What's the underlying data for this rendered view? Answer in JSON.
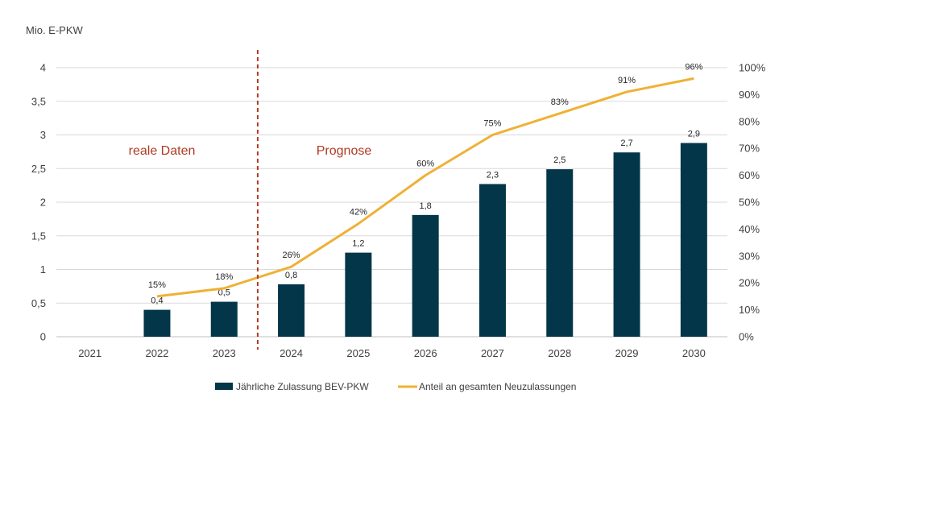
{
  "chart_data": {
    "type": "bar",
    "ylabel": "Mio. E-PKW",
    "categories": [
      "2021",
      "2022",
      "2023",
      "2024",
      "2025",
      "2026",
      "2027",
      "2028",
      "2029",
      "2030"
    ],
    "ylim": [
      0,
      4
    ],
    "yticks": [
      "0",
      "0,5",
      "1",
      "1,5",
      "2",
      "2,5",
      "3",
      "3,5",
      "4"
    ],
    "y2lim": [
      0,
      1
    ],
    "y2ticks": [
      "0%",
      "10%",
      "20%",
      "30%",
      "40%",
      "50%",
      "60%",
      "70%",
      "80%",
      "90%",
      "100%"
    ],
    "grid": true,
    "legend_position": "bottom",
    "series": [
      {
        "name": "Jährliche Zulassung BEV-PKW",
        "type": "bar",
        "axis": "left",
        "color": "#033649",
        "values": [
          null,
          0.4,
          0.52,
          0.78,
          1.25,
          1.81,
          2.27,
          2.49,
          2.74,
          2.88
        ],
        "labels": [
          "",
          "0,4",
          "0,5",
          "0,8",
          "1,2",
          "1,8",
          "2,3",
          "2,5",
          "2,7",
          "2,9"
        ]
      },
      {
        "name": "Anteil an gesamten Neuzulassungen",
        "type": "line",
        "axis": "right",
        "color": "#EFB135",
        "values": [
          null,
          0.15,
          0.18,
          0.26,
          0.42,
          0.6,
          0.75,
          0.83,
          0.91,
          0.96
        ],
        "labels": [
          "",
          "15%",
          "18%",
          "26%",
          "42%",
          "60%",
          "75%",
          "83%",
          "91%",
          "96%"
        ]
      }
    ],
    "annotations": {
      "divider_color": "#B03A22",
      "left_region": "reale Daten",
      "right_region": "Prognose"
    }
  }
}
